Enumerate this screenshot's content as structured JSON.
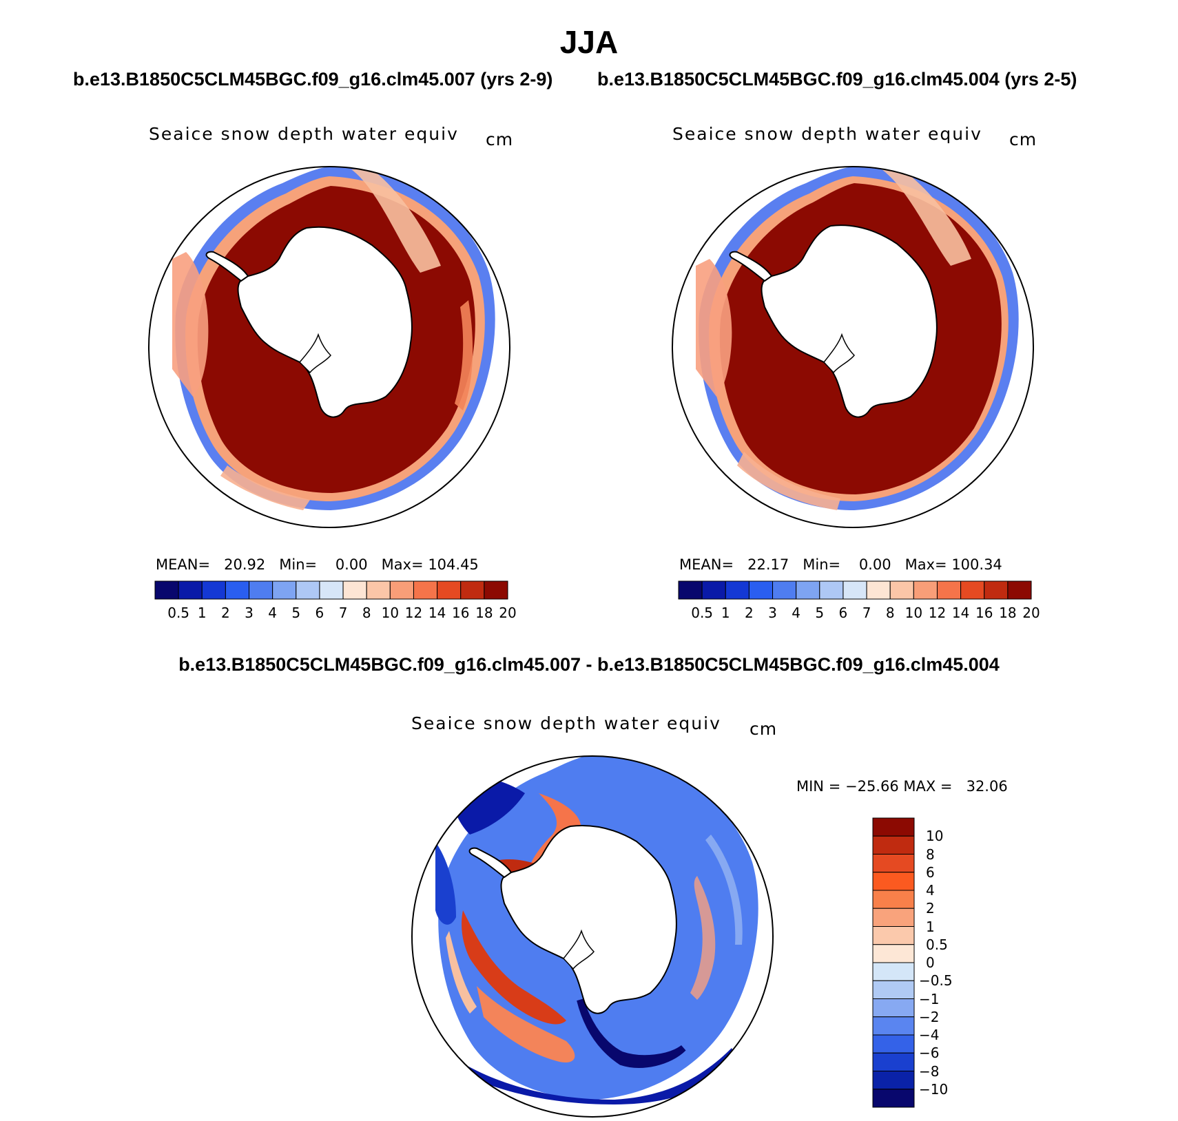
{
  "title": "JJA",
  "panels": {
    "left": {
      "run_label": "b.e13.B1850C5CLM45BGC.f09_g16.clm45.007 (yrs 2-9)",
      "variable": "Seaice snow depth water equiv",
      "units": "cm",
      "mean_label": "MEAN=",
      "mean": "20.92",
      "min_label": "Min=",
      "min": "0.00",
      "max_label": "Max=",
      "max": "104.45"
    },
    "right": {
      "run_label": "b.e13.B1850C5CLM45BGC.f09_g16.clm45.004 (yrs 2-5)",
      "variable": "Seaice snow depth water equiv",
      "units": "cm",
      "mean_label": "MEAN=",
      "mean": "22.17",
      "min_label": "Min=",
      "min": "0.00",
      "max_label": "Max=",
      "max": "100.34"
    },
    "diff": {
      "run_label": "b.e13.B1850C5CLM45BGC.f09_g16.clm45.007 - b.e13.B1850C5CLM45BGC.f09_g16.clm45.004",
      "variable": "Seaice snow depth water equiv",
      "units": "cm",
      "min_label": "MIN =",
      "min": "−25.66",
      "max_label": "MAX =",
      "max": "32.06"
    }
  },
  "colorbar_abs": {
    "ticks": [
      "0.5",
      "1",
      "2",
      "3",
      "4",
      "5",
      "6",
      "7",
      "8",
      "10",
      "12",
      "14",
      "16",
      "18",
      "20"
    ],
    "colors": [
      "#08076d",
      "#0a1aa8",
      "#1438d4",
      "#2a5ef0",
      "#4f7df0",
      "#7ea4f2",
      "#aec8f5",
      "#d7e6f8",
      "#fde5d4",
      "#fbc6a8",
      "#f89e78",
      "#f5744a",
      "#e54a22",
      "#c02b10",
      "#8c0a02"
    ]
  },
  "colorbar_diff": {
    "ticks": [
      "10",
      "8",
      "6",
      "4",
      "2",
      "1",
      "0.5",
      "0",
      "−0.5",
      "−1",
      "−2",
      "−4",
      "−6",
      "−8",
      "−10"
    ],
    "colors": [
      "#8c0a02",
      "#c02b10",
      "#e54a22",
      "#fb5a20",
      "#f8804a",
      "#f9a37c",
      "#fbc9ac",
      "#fde7d6",
      "#d4e6f8",
      "#b0caf4",
      "#87a9f2",
      "#5a85f0",
      "#3462e8",
      "#1a40cf",
      "#0a22a8",
      "#08076d"
    ]
  }
}
